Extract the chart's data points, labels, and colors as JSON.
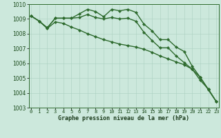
{
  "xlabel": "Graphe pression niveau de la mer (hPa)",
  "hours": [
    0,
    1,
    2,
    3,
    4,
    5,
    6,
    7,
    8,
    9,
    10,
    11,
    12,
    13,
    14,
    15,
    16,
    17,
    18,
    19,
    20,
    21,
    22,
    23
  ],
  "line1": [
    1009.2,
    1008.85,
    1008.4,
    1009.05,
    1009.05,
    1009.05,
    1009.35,
    1009.65,
    1009.5,
    1009.15,
    1009.65,
    1009.55,
    1009.65,
    1009.45,
    1008.65,
    1008.2,
    1007.6,
    1007.6,
    1007.1,
    1006.8,
    1005.8,
    1005.05,
    1004.2,
    1003.4
  ],
  "line2": [
    1009.2,
    1008.85,
    1008.4,
    1009.05,
    1009.05,
    1009.05,
    1009.1,
    1009.3,
    1009.1,
    1009.0,
    1009.1,
    1009.0,
    1009.05,
    1008.85,
    1008.1,
    1007.55,
    1007.05,
    1007.05,
    1006.5,
    1006.05,
    1005.6,
    1004.85,
    1004.25,
    1003.4
  ],
  "line3": [
    1009.2,
    1008.85,
    1008.35,
    1008.8,
    1008.7,
    1008.45,
    1008.25,
    1008.0,
    1007.8,
    1007.6,
    1007.45,
    1007.3,
    1007.2,
    1007.1,
    1006.95,
    1006.75,
    1006.5,
    1006.3,
    1006.1,
    1005.9,
    1005.6,
    1005.05,
    1004.25,
    1003.4
  ],
  "ylim": [
    1003.0,
    1010.0
  ],
  "yticks": [
    1003,
    1004,
    1005,
    1006,
    1007,
    1008,
    1009,
    1010
  ],
  "line_color": "#2d6a2d",
  "bg_color": "#cce8dc",
  "grid_color": "#aad0c0",
  "marker": "D",
  "marker_size": 2.2,
  "line_width": 1.0,
  "tick_label_fontsize": 5.0,
  "xlabel_fontsize": 6.0
}
